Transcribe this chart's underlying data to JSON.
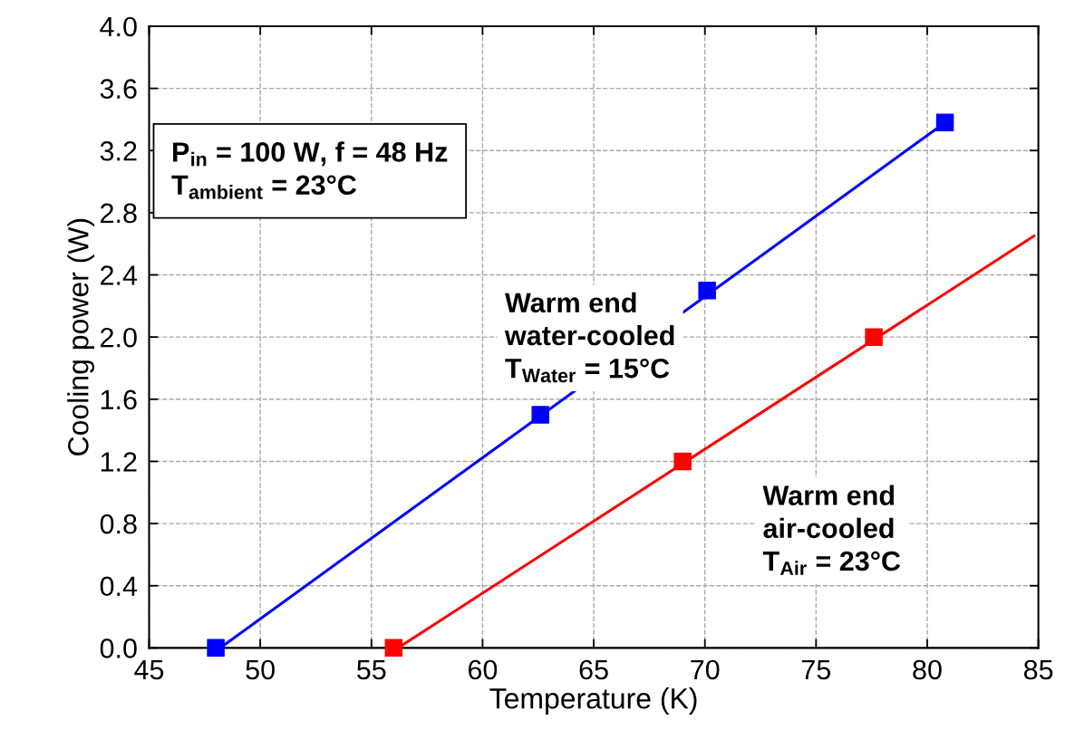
{
  "chart_data": {
    "type": "scatter",
    "xlabel": "Temperature (K)",
    "ylabel": "Cooling power (W)",
    "xlim": [
      45,
      85
    ],
    "xticks": [
      45,
      50,
      55,
      60,
      65,
      70,
      75,
      80,
      85
    ],
    "ylim": [
      0,
      4.0
    ],
    "yticks": [
      {
        "value": 0,
        "label": "0.0"
      },
      0.4,
      0.8,
      1.2,
      1.6,
      {
        "value": 2,
        "label": "2.0"
      },
      2.4,
      2.8,
      3.2,
      3.6,
      {
        "value": 4,
        "label": "4.0"
      }
    ],
    "grid": true,
    "marker": "square",
    "series": [
      {
        "type": "line",
        "color": "#0000ff",
        "x": [
          48.2,
          80.8
        ],
        "values": [
          0,
          3.38
        ],
        "marker": "none"
      },
      {
        "type": "line",
        "color": "#ff0000",
        "x": [
          56.2,
          84.8
        ],
        "values": [
          0,
          2.65
        ],
        "marker": "none"
      },
      {
        "color": "#0000ff",
        "x": [
          48.0,
          62.6,
          70.1,
          80.8
        ],
        "values": [
          0,
          1.5,
          2.3,
          3.38
        ]
      },
      {
        "color": "#ff0000",
        "x": [
          56.0,
          69.0,
          77.6
        ],
        "values": [
          0,
          1.2,
          2.0
        ]
      }
    ],
    "annotations": [
      "P$_{in}$ = 100 W, f = 48 Hz\nT$_{ambient}$ = 23°C",
      "Warm end\nwater-cooled\nT$_{Water}$ = 15°C",
      "Warm end\nair-cooled\nT$_{Air}$ = 23°C"
    ]
  }
}
